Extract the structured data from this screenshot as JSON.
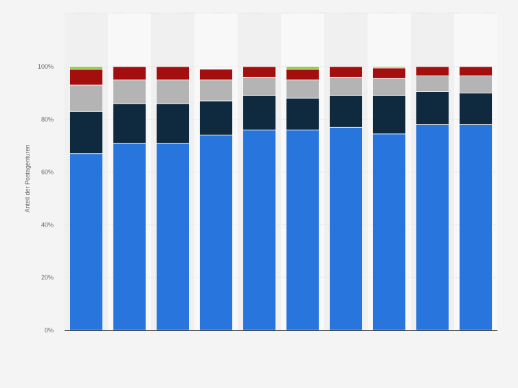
{
  "chart_data": {
    "type": "bar",
    "stacked": true,
    "categories": [
      "",
      "",
      "",
      "",
      "",
      "",
      "",
      "",
      "",
      ""
    ],
    "ylabel": "Anteil der Postagenturen",
    "ylim": [
      0,
      100
    ],
    "yticks": [
      0,
      20,
      40,
      60,
      80,
      100
    ],
    "ytick_labels": [
      "0%",
      "20%",
      "40%",
      "60%",
      "80%",
      "100%"
    ],
    "grid": true,
    "legend": "none",
    "series": [
      {
        "color": "#2876dd",
        "values": [
          67,
          71,
          71,
          74,
          76,
          76,
          77,
          74.5,
          78,
          78
        ]
      },
      {
        "color": "#0f2a3f",
        "values": [
          16,
          15,
          15,
          13,
          13,
          12,
          12,
          14.5,
          12.5,
          12
        ]
      },
      {
        "color": "#b4b4b4",
        "values": [
          10,
          9,
          9,
          8,
          7,
          7,
          7,
          6.5,
          6,
          6.5
        ]
      },
      {
        "color": "#a30f0f",
        "values": [
          6,
          5,
          5,
          4,
          4,
          4,
          4,
          4,
          3.5,
          3.5
        ]
      },
      {
        "color": "#8cc63f",
        "values": [
          1,
          0,
          0,
          0,
          0,
          1,
          0,
          0.5,
          0,
          0
        ]
      }
    ]
  }
}
